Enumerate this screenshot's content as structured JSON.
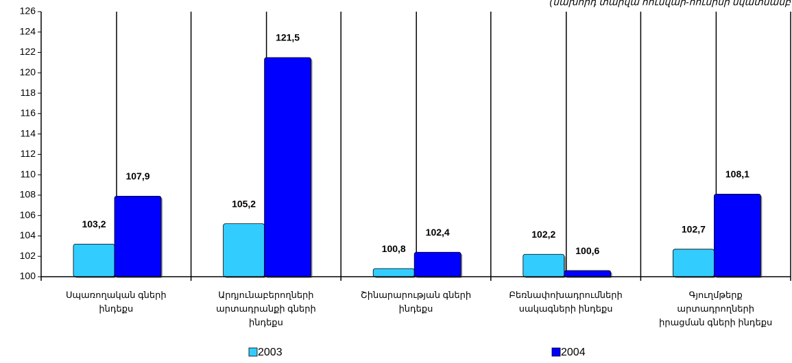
{
  "chart_data": {
    "type": "bar",
    "subtitle": "(նախորդ տարվա  հունվար-հունիսի նկատմամբ",
    "categories": [
      "Սպառողական գների\nինդեքս",
      "Արդյունաբերողների\nարտադրանքի գների\nինդեքս",
      "Շինարարության գների\nինդեքս",
      "Բեռնափոխադրումների\nսակագների ինդեքս",
      "Գյուղմթերք\nարտադրողների\nիրացման գների ինդեքս"
    ],
    "series": [
      {
        "name": "2003",
        "color": "#33ccff",
        "values": [
          103.2,
          105.2,
          100.8,
          102.2,
          102.7
        ],
        "value_labels": [
          "103,2",
          "105,2",
          "100,8",
          "102,2",
          "102,7"
        ]
      },
      {
        "name": "2004",
        "color": "#0000ff",
        "values": [
          107.9,
          121.5,
          102.4,
          100.6,
          108.1
        ],
        "value_labels": [
          "107,9",
          "121,5",
          "102,4",
          "100,6",
          "108,1"
        ]
      }
    ],
    "ylim": [
      100,
      126
    ],
    "yticks": [
      100,
      102,
      104,
      106,
      108,
      110,
      112,
      114,
      116,
      118,
      120,
      122,
      124,
      126
    ]
  }
}
